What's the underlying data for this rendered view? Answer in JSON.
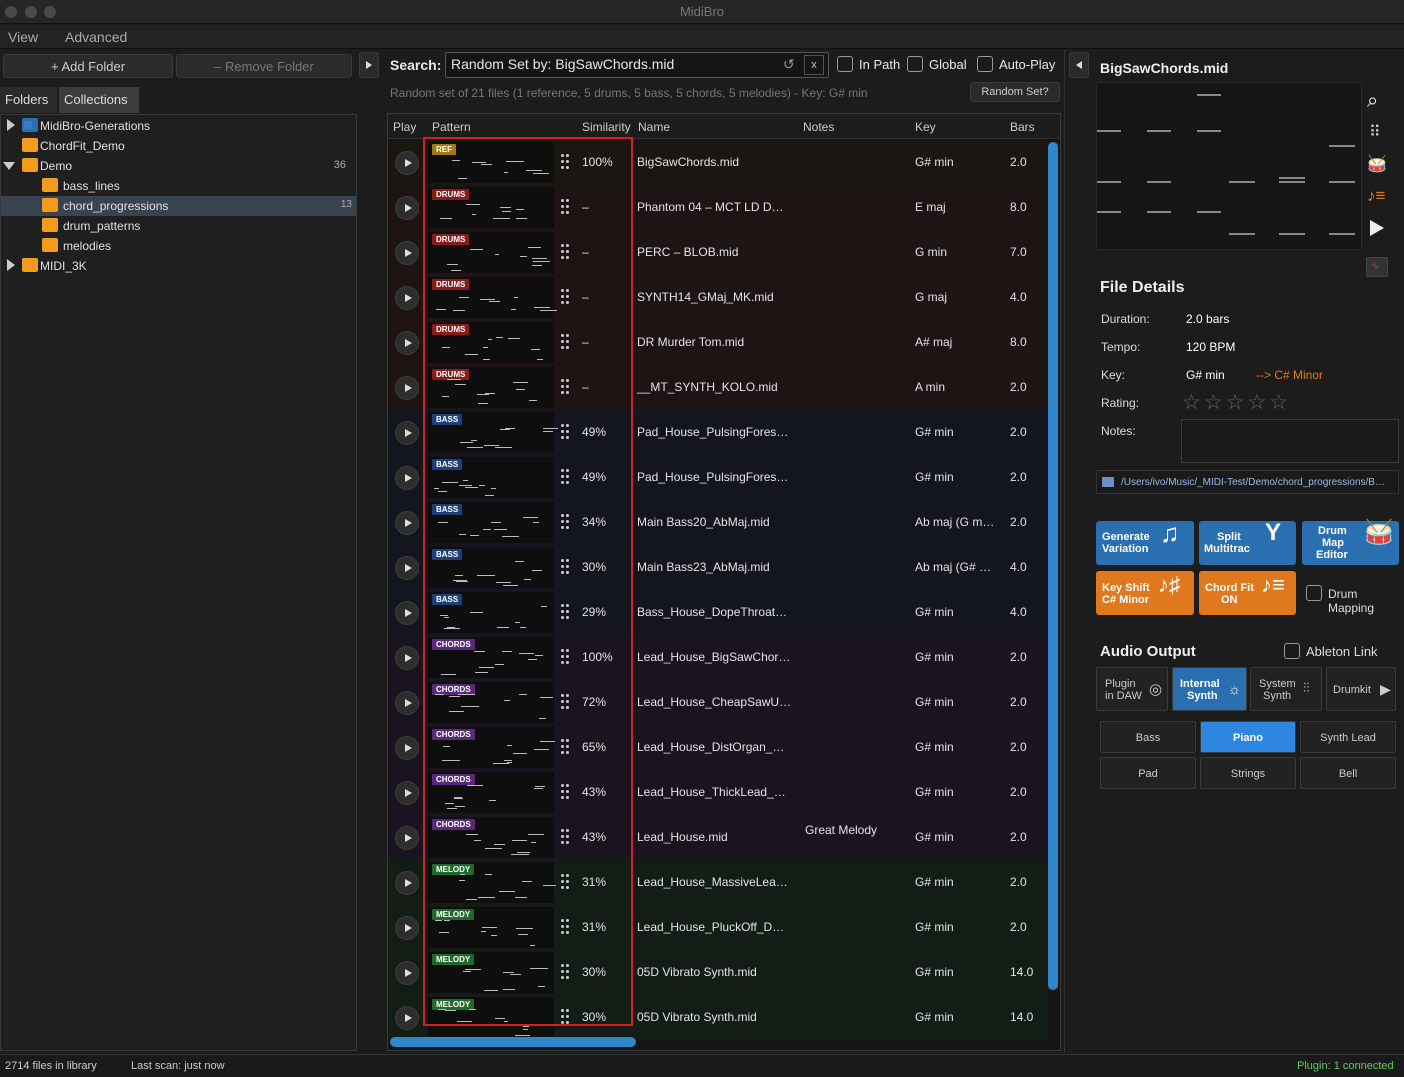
{
  "app": {
    "title": "MidiBro"
  },
  "menu": [
    "View",
    "Advanced"
  ],
  "left": {
    "add_folder": "+ Add Folder",
    "remove_folder": "– Remove Folder",
    "tabs": [
      "Folders",
      "Collections"
    ],
    "tree": [
      {
        "label": "MidiBro-Generations",
        "count": ""
      },
      {
        "label": "ChordFit_Demo",
        "count": ""
      },
      {
        "label": "Demo",
        "count": "36"
      },
      {
        "label": "bass_lines",
        "count": ""
      },
      {
        "label": "chord_progressions",
        "count": "13"
      },
      {
        "label": "drum_patterns",
        "count": ""
      },
      {
        "label": "melodies",
        "count": ""
      },
      {
        "label": "MIDI_3K",
        "count": ""
      }
    ]
  },
  "search": {
    "label": "Search:",
    "value": "Random Set by: BigSawChords.mid",
    "clear": "x",
    "in_path": "In Path",
    "global": "Global",
    "autoplay": "Auto-Play",
    "info": "Random set of 21 files (1 reference, 5 drums, 5 bass, 5 chords, 5 melodies) - Key: G# min",
    "random_btn": "Random Set?"
  },
  "table": {
    "headers": [
      "Play",
      "Pattern",
      "Similarity",
      "Name",
      "Notes",
      "Key",
      "Bars"
    ],
    "rows": [
      {
        "tag": "REF",
        "sim": "100%",
        "name": "BigSawChords.mid",
        "notes": "",
        "key": "G# min",
        "bars": "2.0"
      },
      {
        "tag": "DRUMS",
        "sim": "–",
        "name": "Phantom 04 – MCT LD D…",
        "notes": "",
        "key": "E maj",
        "bars": "8.0"
      },
      {
        "tag": "DRUMS",
        "sim": "–",
        "name": "PERC – BLOB.mid",
        "notes": "",
        "key": "G min",
        "bars": "7.0"
      },
      {
        "tag": "DRUMS",
        "sim": "–",
        "name": "SYNTH14_GMaj_MK.mid",
        "notes": "",
        "key": "G maj",
        "bars": "4.0"
      },
      {
        "tag": "DRUMS",
        "sim": "–",
        "name": "DR Murder Tom.mid",
        "notes": "",
        "key": "A# maj",
        "bars": "8.0"
      },
      {
        "tag": "DRUMS",
        "sim": "–",
        "name": "__MT_SYNTH_KOLO.mid",
        "notes": "",
        "key": "A min",
        "bars": "2.0"
      },
      {
        "tag": "BASS",
        "sim": "49%",
        "name": "Pad_House_PulsingFores…",
        "notes": "",
        "key": "G# min",
        "bars": "2.0"
      },
      {
        "tag": "BASS",
        "sim": "49%",
        "name": "Pad_House_PulsingFores…",
        "notes": "",
        "key": "G# min",
        "bars": "2.0"
      },
      {
        "tag": "BASS",
        "sim": "34%",
        "name": "Main Bass20_AbMaj.mid",
        "notes": "",
        "key": "Ab maj (G m…",
        "bars": "2.0"
      },
      {
        "tag": "BASS",
        "sim": "30%",
        "name": "Main Bass23_AbMaj.mid",
        "notes": "",
        "key": "Ab maj (G# …",
        "bars": "4.0"
      },
      {
        "tag": "BASS",
        "sim": "29%",
        "name": "Bass_House_DopeThroat…",
        "notes": "",
        "key": "G# min",
        "bars": "4.0"
      },
      {
        "tag": "CHORDS",
        "sim": "100%",
        "name": "Lead_House_BigSawChor…",
        "notes": "",
        "key": "G# min",
        "bars": "2.0"
      },
      {
        "tag": "CHORDS",
        "sim": "72%",
        "name": "Lead_House_CheapSawU…",
        "notes": "",
        "key": "G# min",
        "bars": "2.0"
      },
      {
        "tag": "CHORDS",
        "sim": "65%",
        "name": "Lead_House_DistOrgan_…",
        "notes": "",
        "key": "G# min",
        "bars": "2.0"
      },
      {
        "tag": "CHORDS",
        "sim": "43%",
        "name": "Lead_House_ThickLead_…",
        "notes": "",
        "key": "G# min",
        "bars": "2.0"
      },
      {
        "tag": "CHORDS",
        "sim": "43%",
        "name": "Lead_House.mid",
        "notes": "Great Melody",
        "key": "G# min",
        "bars": "2.0"
      },
      {
        "tag": "MELODY",
        "sim": "31%",
        "name": "Lead_House_MassiveLea…",
        "notes": "",
        "key": "G# min",
        "bars": "2.0"
      },
      {
        "tag": "MELODY",
        "sim": "31%",
        "name": "Lead_House_PluckOff_D…",
        "notes": "",
        "key": "G# min",
        "bars": "2.0"
      },
      {
        "tag": "MELODY",
        "sim": "30%",
        "name": "05D Vibrato Synth.mid",
        "notes": "",
        "key": "G# min",
        "bars": "14.0"
      },
      {
        "tag": "MELODY",
        "sim": "30%",
        "name": "05D Vibrato Synth.mid",
        "notes": "",
        "key": "G# min",
        "bars": "14.0"
      }
    ]
  },
  "colors": {
    "REF": "#a07a10",
    "DRUMS": "#8a1c1c",
    "BASS": "#1d3f7a",
    "CHORDS": "#5a2a7a",
    "MELODY": "#1f6a2a",
    "row_REF": "#1a1712",
    "row_DRUMS": "#1e1414",
    "row_BASS": "#13161f",
    "row_CHORDS": "#1a1420",
    "row_MELODY": "#131d15",
    "accent": "#2a6fb0",
    "orange": "#e0791d"
  },
  "right": {
    "file_title": "BigSawChords.mid",
    "details_title": "File Details",
    "duration_label": "Duration:",
    "duration": "2.0 bars",
    "tempo_label": "Tempo:",
    "tempo": "120 BPM",
    "key_label": "Key:",
    "key": "G# min",
    "key_shift": "--> C# Minor",
    "rating_label": "Rating:",
    "rating": 0,
    "rating_stars": "☆☆☆☆☆",
    "notes_label": "Notes:",
    "path": "/Users/ivo/Music/_MIDI-Test/Demo/chord_progressions/B…",
    "btn_generate": [
      "Generate",
      "Variation"
    ],
    "btn_split": [
      "Split",
      "Multitrac"
    ],
    "btn_drum": [
      "Drum",
      "Map",
      "Editor"
    ],
    "btn_keyshift": [
      "Key Shift",
      "C# Minor"
    ],
    "btn_chordfit": [
      "Chord Fit",
      "ON"
    ],
    "drum_mapping": "Drum Mapping",
    "audio_output": "Audio Output",
    "ableton_link": "Ableton Link",
    "outputs": [
      [
        "Plugin",
        "in DAW"
      ],
      [
        "Internal",
        "Synth"
      ],
      [
        "System",
        "Synth"
      ],
      [
        "Drumkit"
      ]
    ],
    "synths": [
      "Bass",
      "Piano",
      "Synth Lead",
      "Pad",
      "Strings",
      "Bell"
    ],
    "selected_synth": "Piano"
  },
  "status": {
    "files": "2714 files in library",
    "scan": "Last scan: just now",
    "plugin": "Plugin: 1 connected"
  }
}
